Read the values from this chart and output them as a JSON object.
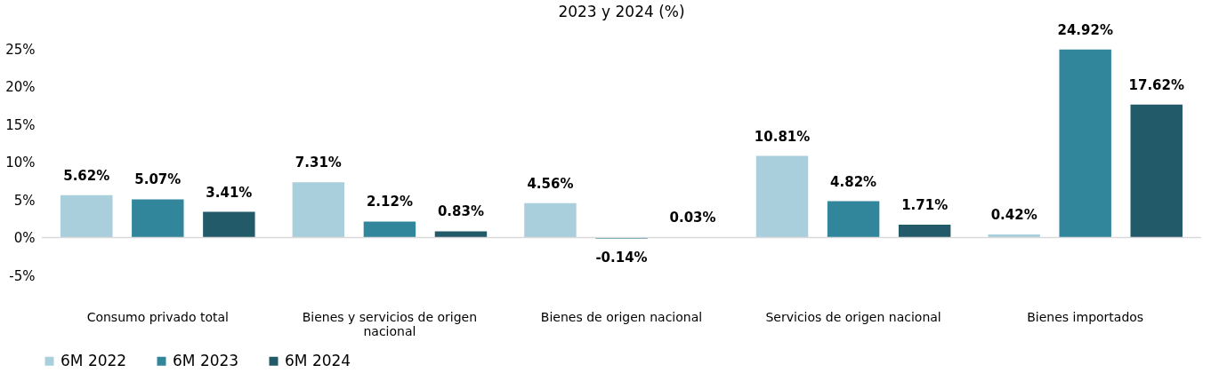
{
  "chart_data": {
    "type": "bar",
    "title": "2023 y 2024 (%)",
    "categories": [
      "Consumo privado total",
      "Bienes y servicios de origen nacional",
      "Bienes de origen nacional",
      "Servicios de origen nacional",
      "Bienes importados"
    ],
    "series": [
      {
        "name": "6M 2022",
        "color": "#a9cfdc",
        "values": [
          5.62,
          7.31,
          4.56,
          10.81,
          0.42
        ],
        "value_labels": [
          "5.62%",
          "7.31%",
          "4.56%",
          "10.81%",
          "0.42%"
        ]
      },
      {
        "name": "6M 2023",
        "color": "#32869c",
        "values": [
          5.07,
          2.12,
          -0.14,
          4.82,
          24.92
        ],
        "value_labels": [
          "5.07%",
          "2.12%",
          "-0.14%",
          "4.82%",
          "24.92%"
        ]
      },
      {
        "name": "6M 2024",
        "color": "#235a69",
        "values": [
          3.41,
          0.83,
          0.03,
          1.71,
          17.62
        ],
        "value_labels": [
          "3.41%",
          "0.83%",
          "0.03%",
          "1.71%",
          "17.62%"
        ]
      }
    ],
    "ylim": [
      -5,
      25
    ],
    "yticks": [
      {
        "value": -5,
        "label": "-5%"
      },
      {
        "value": 0,
        "label": "0%"
      },
      {
        "value": 5,
        "label": "5%"
      },
      {
        "value": 10,
        "label": "10%"
      },
      {
        "value": 15,
        "label": "15%"
      },
      {
        "value": 20,
        "label": "20%"
      },
      {
        "value": 25,
        "label": "25%"
      }
    ],
    "ref_lines": [
      {
        "axis": "y",
        "value": 0,
        "color": "#d9d9d9"
      }
    ],
    "grid": false,
    "legend": "bottom"
  }
}
